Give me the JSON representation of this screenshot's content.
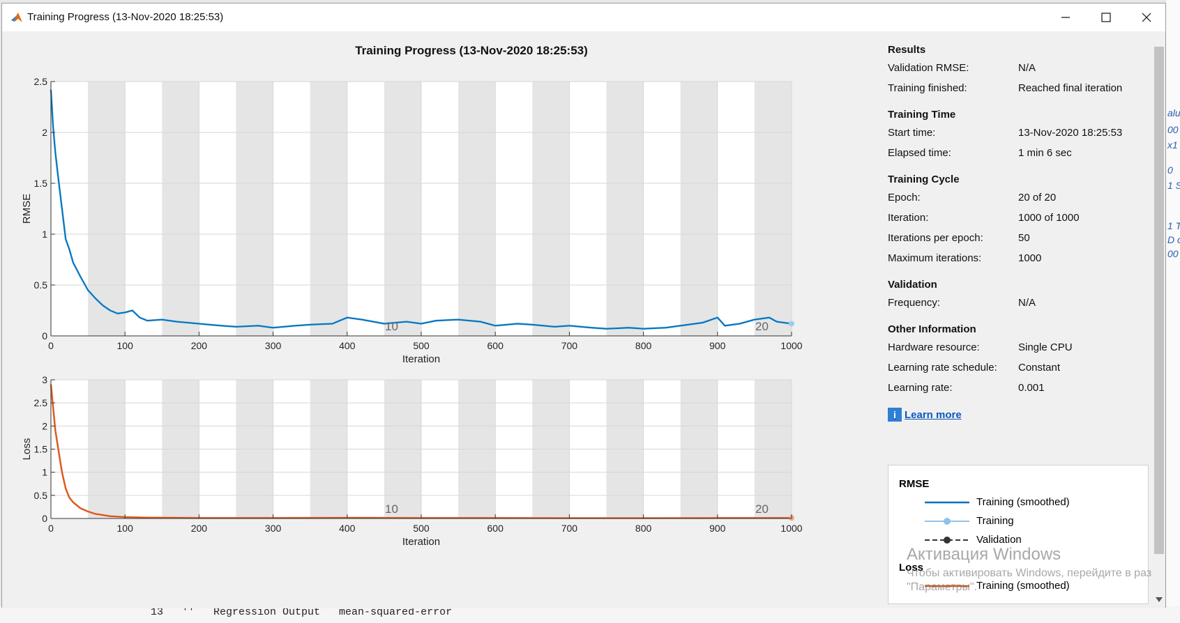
{
  "window": {
    "title": "Training Progress (13-Nov-2020 18:25:53)"
  },
  "background": {
    "code_line": "  13   ''   Regression Output   mean-squared-error",
    "right_strip": [
      "alue",
      "00",
      "x1",
      "0",
      "1 S",
      "1 T",
      "D c",
      "00"
    ]
  },
  "plot": {
    "title": "Training Progress (13-Nov-2020 18:25:53)"
  },
  "chart_data": [
    {
      "type": "line",
      "title": "Training Progress (13-Nov-2020 18:25:53)",
      "xlabel": "Iteration",
      "ylabel": "RMSE",
      "xlim": [
        0,
        1000
      ],
      "ylim": [
        0,
        2.5
      ],
      "xticks": [
        0,
        100,
        200,
        300,
        400,
        500,
        600,
        700,
        800,
        900,
        1000
      ],
      "yticks": [
        0,
        0.5,
        1,
        1.5,
        2,
        2.5
      ],
      "ytick_labels": [
        "0",
        "0.5",
        "1",
        "1.5",
        "2",
        "2.5"
      ],
      "epoch_bands": 20,
      "iterations_per_epoch": 50,
      "epoch_markers": [
        {
          "x": 460,
          "label": "10"
        },
        {
          "x": 960,
          "label": "20"
        }
      ],
      "grid": true,
      "series": [
        {
          "name": "Training (smoothed)",
          "color": "#0072bd",
          "x": [
            0,
            3,
            6,
            10,
            15,
            20,
            25,
            30,
            40,
            50,
            60,
            70,
            80,
            90,
            100,
            110,
            120,
            130,
            150,
            170,
            200,
            230,
            250,
            280,
            300,
            330,
            350,
            380,
            400,
            420,
            450,
            480,
            500,
            520,
            550,
            580,
            600,
            630,
            650,
            680,
            700,
            730,
            750,
            780,
            800,
            830,
            850,
            880,
            900,
            910,
            930,
            950,
            970,
            980,
            1000
          ],
          "y": [
            2.42,
            2.05,
            1.8,
            1.55,
            1.25,
            0.95,
            0.85,
            0.72,
            0.58,
            0.45,
            0.37,
            0.3,
            0.25,
            0.22,
            0.23,
            0.25,
            0.18,
            0.15,
            0.16,
            0.14,
            0.12,
            0.1,
            0.09,
            0.1,
            0.08,
            0.1,
            0.11,
            0.12,
            0.18,
            0.16,
            0.12,
            0.14,
            0.12,
            0.15,
            0.16,
            0.14,
            0.1,
            0.12,
            0.11,
            0.09,
            0.1,
            0.08,
            0.07,
            0.08,
            0.07,
            0.08,
            0.1,
            0.13,
            0.18,
            0.1,
            0.12,
            0.16,
            0.18,
            0.14,
            0.12
          ]
        }
      ]
    },
    {
      "type": "line",
      "xlabel": "Iteration",
      "ylabel": "Loss",
      "xlim": [
        0,
        1000
      ],
      "ylim": [
        0,
        3
      ],
      "xticks": [
        0,
        100,
        200,
        300,
        400,
        500,
        600,
        700,
        800,
        900,
        1000
      ],
      "yticks": [
        0,
        0.5,
        1,
        1.5,
        2,
        2.5,
        3
      ],
      "ytick_labels": [
        "0",
        "0.5",
        "1",
        "1.5",
        "2",
        "2.5",
        "3"
      ],
      "epoch_bands": 20,
      "iterations_per_epoch": 50,
      "epoch_markers": [
        {
          "x": 460,
          "label": "10"
        },
        {
          "x": 960,
          "label": "20"
        }
      ],
      "grid": true,
      "series": [
        {
          "name": "Training (smoothed)",
          "color": "#d95319",
          "x": [
            0,
            3,
            6,
            10,
            15,
            20,
            25,
            30,
            40,
            50,
            60,
            80,
            100,
            130,
            200,
            300,
            400,
            500,
            600,
            700,
            800,
            900,
            1000
          ],
          "y": [
            2.9,
            2.4,
            1.9,
            1.5,
            1.0,
            0.65,
            0.45,
            0.35,
            0.22,
            0.15,
            0.1,
            0.05,
            0.03,
            0.02,
            0.01,
            0.01,
            0.015,
            0.012,
            0.01,
            0.008,
            0.008,
            0.01,
            0.012
          ]
        }
      ]
    }
  ],
  "results": {
    "sections": [
      {
        "title": "Results",
        "rows": [
          {
            "k": "Validation RMSE:",
            "v": "N/A"
          },
          {
            "k": "Training finished:",
            "v": "Reached final iteration"
          }
        ]
      },
      {
        "title": "Training Time",
        "rows": [
          {
            "k": "Start time:",
            "v": "13-Nov-2020 18:25:53"
          },
          {
            "k": "Elapsed time:",
            "v": "1 min 6 sec"
          }
        ]
      },
      {
        "title": "Training Cycle",
        "rows": [
          {
            "k": "Epoch:",
            "v": "20 of 20"
          },
          {
            "k": "Iteration:",
            "v": "1000 of 1000"
          },
          {
            "k": "Iterations per epoch:",
            "v": "50"
          },
          {
            "k": "Maximum iterations:",
            "v": "1000"
          }
        ]
      },
      {
        "title": "Validation",
        "rows": [
          {
            "k": "Frequency:",
            "v": "N/A"
          }
        ]
      },
      {
        "title": "Other Information",
        "rows": [
          {
            "k": "Hardware resource:",
            "v": "Single CPU"
          },
          {
            "k": "Learning rate schedule:",
            "v": "Constant"
          },
          {
            "k": "Learning rate:",
            "v": "0.001"
          }
        ]
      }
    ],
    "learn_more": "Learn more",
    "info_icon": "info-icon"
  },
  "legend": {
    "rmse_title": "RMSE",
    "loss_title": "Loss",
    "rmse_items": [
      {
        "label": "Training (smoothed)",
        "color": "#0072bd",
        "style": "line"
      },
      {
        "label": "Training",
        "color": "#8fc3e6",
        "style": "line-dot"
      },
      {
        "label": "Validation",
        "color": "#333333",
        "style": "dashed-dot"
      }
    ],
    "loss_items": [
      {
        "label": "Training (smoothed)",
        "color": "#d95319",
        "style": "line"
      }
    ]
  },
  "watermark": {
    "line1": "Активация Windows",
    "line2": "Чтобы активировать Windows, перейдите в раз",
    "line3": "\"Параметры\"."
  }
}
